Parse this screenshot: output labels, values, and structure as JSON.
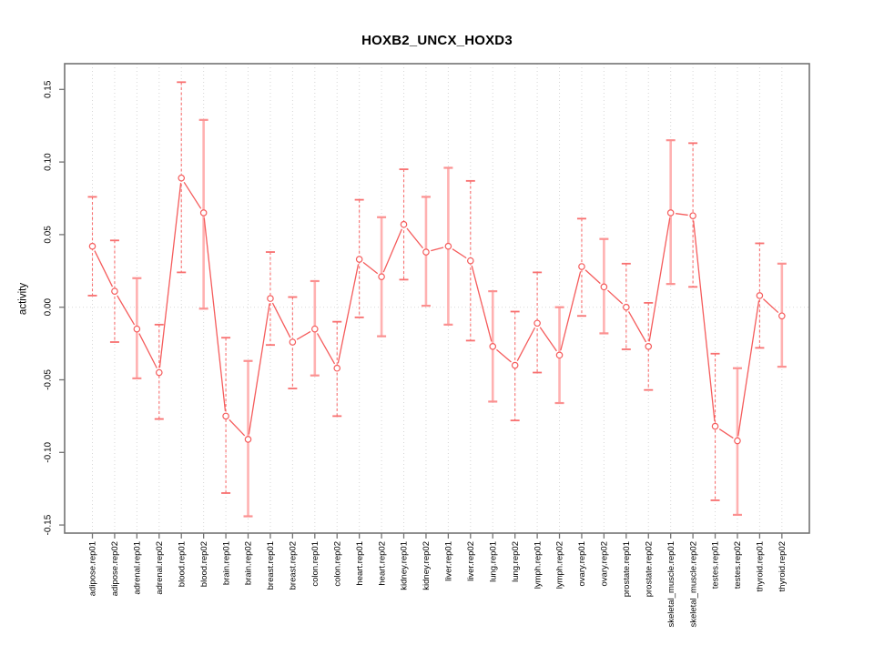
{
  "chart_data": {
    "type": "line",
    "title": "HOXB2_UNCX_HOXD3",
    "xlabel": "",
    "ylabel": "activity",
    "legend": "none",
    "grid": "vertical dotted gridlines at every category; dotted horizontal line at y=0",
    "ylim": [
      -0.156,
      0.168
    ],
    "yticks": [
      0.15,
      0.1,
      0.05,
      0.0,
      -0.05,
      -0.1,
      -0.15
    ],
    "ytick_labels": [
      "0.15",
      "0.10",
      "0.05",
      "0.00",
      "-0.05",
      "-0.10",
      "-0.15"
    ],
    "categories": [
      "adipose.rep01",
      "adipose.rep02",
      "adrenal.rep01",
      "adrenal.rep02",
      "blood.rep01",
      "blood.rep02",
      "brain.rep01",
      "brain.rep02",
      "breast.rep01",
      "breast.rep02",
      "colon.rep01",
      "colon.rep02",
      "heart.rep01",
      "heart.rep02",
      "kidney.rep01",
      "kidney.rep02",
      "liver.rep01",
      "liver.rep02",
      "lung.rep01",
      "lung.rep02",
      "lymph.rep01",
      "lymph.rep02",
      "ovary.rep01",
      "ovary.rep02",
      "prostate.rep01",
      "prostate.rep02",
      "skeletal_muscle.rep01",
      "skeletal_muscle.rep02",
      "testes.rep01",
      "testes.rep02",
      "thyroid.rep01",
      "thyroid.rep02"
    ],
    "series": [
      {
        "name": "activity",
        "marker": "open-circle",
        "line_type": "both-with-gaps",
        "values": [
          0.042,
          0.011,
          -0.015,
          -0.045,
          0.089,
          0.065,
          -0.075,
          -0.091,
          0.006,
          -0.024,
          -0.015,
          -0.042,
          0.033,
          0.021,
          0.057,
          0.038,
          0.042,
          0.032,
          -0.027,
          -0.04,
          -0.011,
          -0.033,
          0.028,
          0.014,
          0.0,
          -0.027,
          0.065,
          0.063,
          -0.082,
          -0.092,
          0.008,
          -0.006
        ],
        "err_low": [
          0.008,
          -0.024,
          -0.049,
          -0.077,
          0.024,
          -0.001,
          -0.128,
          -0.144,
          -0.026,
          -0.056,
          -0.047,
          -0.075,
          -0.007,
          -0.02,
          0.019,
          0.001,
          -0.012,
          -0.023,
          -0.065,
          -0.078,
          -0.045,
          -0.066,
          -0.006,
          -0.018,
          -0.029,
          -0.057,
          0.016,
          0.014,
          -0.133,
          -0.143,
          -0.028,
          -0.041
        ],
        "err_high": [
          0.076,
          0.046,
          0.02,
          -0.012,
          0.155,
          0.129,
          -0.021,
          -0.037,
          0.038,
          0.007,
          0.018,
          -0.01,
          0.074,
          0.062,
          0.095,
          0.076,
          0.096,
          0.087,
          0.011,
          -0.003,
          0.024,
          0.0,
          0.061,
          0.047,
          0.03,
          0.003,
          0.115,
          0.113,
          -0.032,
          -0.042,
          0.044,
          0.03
        ],
        "bar_styles": [
          "dashed",
          "dashed",
          "solid",
          "dashed",
          "dashed",
          "solid",
          "dashed",
          "solid",
          "dashed",
          "dashed",
          "solid",
          "dashed",
          "dashed",
          "solid",
          "dashed",
          "solid",
          "solid",
          "dashed",
          "solid",
          "dashed",
          "dashed",
          "solid",
          "dashed",
          "solid",
          "dashed",
          "dashed",
          "solid",
          "dashed",
          "dashed",
          "solid",
          "dashed",
          "solid"
        ]
      }
    ],
    "colors": {
      "series_line": "#f55c5c",
      "marker_stroke": "#f55c5c",
      "marker_fill": "#ffffff",
      "errorbar_dashed": "#f87070",
      "errorbar_solid": "#ffb1b1",
      "errorbar_cap_dashed": "#f87070",
      "errorbar_cap_solid": "#fb9090",
      "axis_box": "#737373",
      "gridline": "#d6d6d6",
      "zero_line": "#d9d9d9",
      "text": "#000000",
      "background": "#ffffff"
    }
  }
}
